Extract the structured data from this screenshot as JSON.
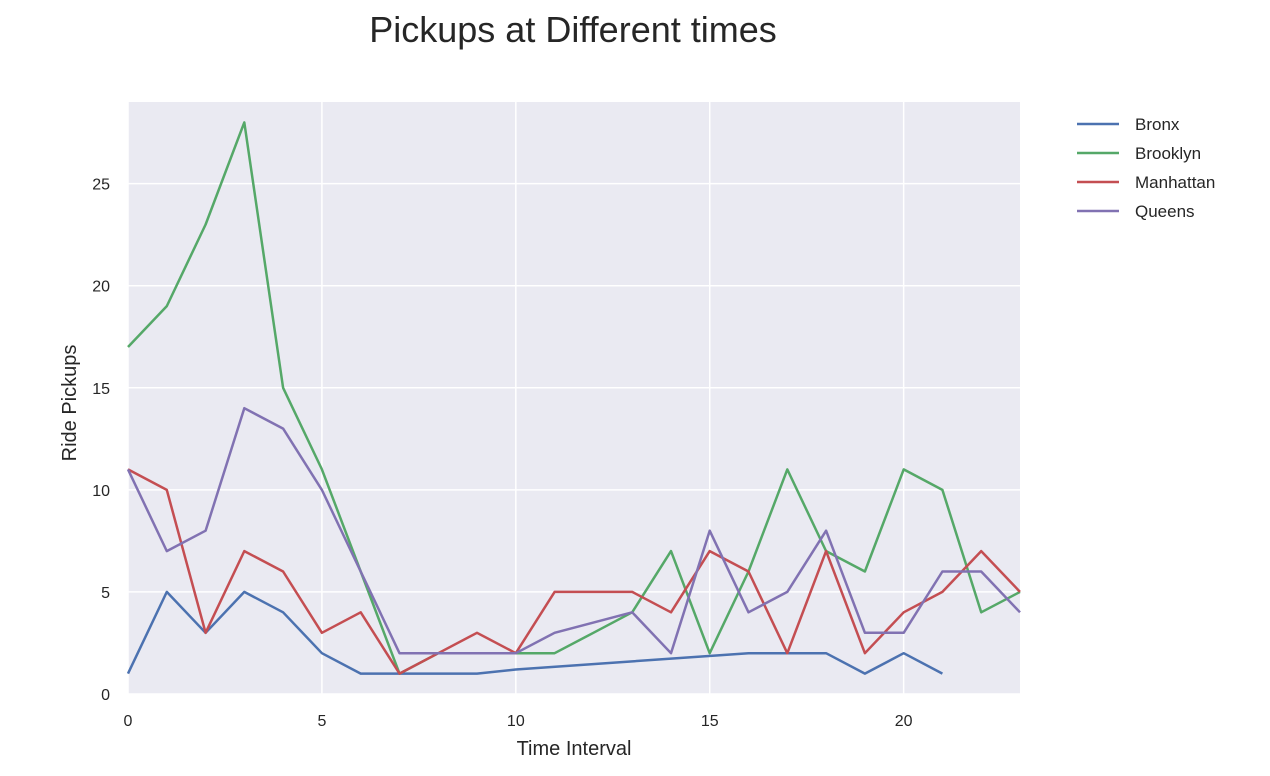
{
  "chart_data": {
    "type": "line",
    "title": "Pickups at Different times",
    "xlabel": "Time Interval",
    "ylabel": "Ride Pickups",
    "xlim": [
      0,
      23
    ],
    "ylim": [
      0,
      29
    ],
    "x_ticks": [
      0,
      5,
      10,
      15,
      20
    ],
    "y_ticks": [
      0,
      5,
      10,
      15,
      20,
      25
    ],
    "grid": true,
    "legend_placement": "outside-right-top",
    "background_color": "#eaeaf2",
    "series": [
      {
        "name": "Bronx",
        "color": "#4c72b0",
        "x": [
          0,
          1,
          2,
          3,
          4,
          5,
          6,
          7,
          9,
          10,
          16,
          17,
          18,
          19,
          20,
          21
        ],
        "values": [
          1,
          5,
          3,
          5,
          4,
          2,
          1,
          1,
          1,
          1.2,
          2,
          2,
          2,
          1,
          2,
          1
        ]
      },
      {
        "name": "Brooklyn",
        "color": "#55a868",
        "x": [
          0,
          1,
          2,
          3,
          4,
          5,
          6,
          7,
          8,
          9,
          10,
          11,
          12,
          13,
          14,
          15,
          16,
          17,
          18,
          19,
          20,
          21,
          22,
          23
        ],
        "values": [
          17,
          19,
          23,
          28,
          15,
          11,
          6,
          1,
          2,
          2,
          2,
          2,
          3,
          4,
          7,
          2,
          6,
          11,
          7,
          6,
          11,
          10,
          4,
          5
        ]
      },
      {
        "name": "Manhattan",
        "color": "#c44e52",
        "x": [
          0,
          1,
          2,
          3,
          4,
          5,
          6,
          7,
          8,
          9,
          10,
          11,
          12,
          13,
          14,
          15,
          16,
          17,
          18,
          19,
          20,
          21,
          22,
          23
        ],
        "values": [
          11,
          10,
          3,
          7,
          6,
          3,
          4,
          1,
          2,
          3,
          2,
          5,
          5,
          5,
          4,
          7,
          6,
          2,
          7,
          2,
          4,
          5,
          7,
          5
        ]
      },
      {
        "name": "Queens",
        "color": "#8172b2",
        "x": [
          0,
          1,
          2,
          3,
          4,
          5,
          6,
          7,
          8,
          9,
          10,
          11,
          12,
          13,
          14,
          15,
          16,
          17,
          18,
          19,
          20,
          21,
          22,
          23
        ],
        "values": [
          11,
          7,
          8,
          14,
          13,
          10,
          6,
          2,
          2,
          2,
          2,
          3,
          3.5,
          4,
          2,
          8,
          4,
          5,
          8,
          3,
          3,
          6,
          6,
          4
        ]
      }
    ]
  }
}
